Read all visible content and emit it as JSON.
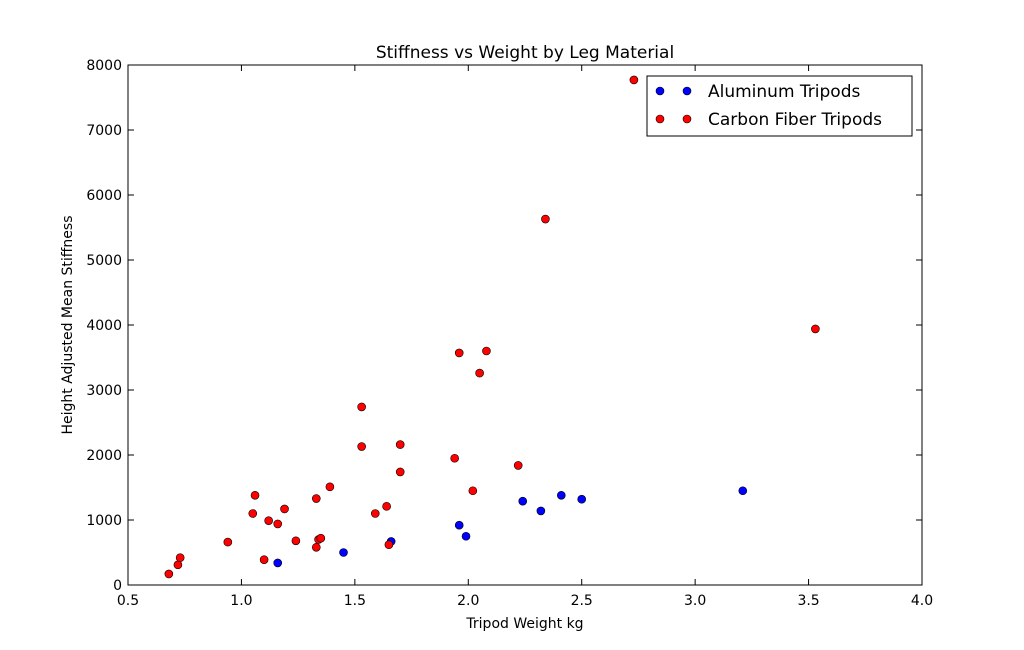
{
  "chart_data": {
    "type": "scatter",
    "title": "Stiffness vs Weight by Leg Material",
    "xlabel": "Tripod Weight kg",
    "ylabel": "Height Adjusted Mean Stiffness",
    "xlim": [
      0.5,
      4.0
    ],
    "ylim": [
      0,
      8000
    ],
    "x_ticks": [
      "0.5",
      "1.0",
      "1.5",
      "2.0",
      "2.5",
      "3.0",
      "3.5",
      "4.0"
    ],
    "y_ticks": [
      "0",
      "1000",
      "2000",
      "3000",
      "4000",
      "5000",
      "6000",
      "7000",
      "8000"
    ],
    "grid": false,
    "legend_position": "top-right",
    "series": [
      {
        "name": "Aluminum Tripods",
        "color": "#0000ff",
        "points": [
          [
            1.16,
            340
          ],
          [
            1.45,
            500
          ],
          [
            1.66,
            670
          ],
          [
            1.96,
            920
          ],
          [
            1.99,
            750
          ],
          [
            2.24,
            1290
          ],
          [
            2.32,
            1140
          ],
          [
            2.41,
            1380
          ],
          [
            2.5,
            1320
          ],
          [
            3.21,
            1450
          ]
        ]
      },
      {
        "name": "Carbon Fiber Tripods",
        "color": "#ff0000",
        "points": [
          [
            0.68,
            170
          ],
          [
            0.72,
            310
          ],
          [
            0.73,
            420
          ],
          [
            0.94,
            660
          ],
          [
            1.05,
            1100
          ],
          [
            1.06,
            1380
          ],
          [
            1.1,
            390
          ],
          [
            1.12,
            990
          ],
          [
            1.16,
            940
          ],
          [
            1.19,
            1170
          ],
          [
            1.24,
            680
          ],
          [
            1.33,
            580
          ],
          [
            1.33,
            1330
          ],
          [
            1.34,
            700
          ],
          [
            1.35,
            720
          ],
          [
            1.39,
            1510
          ],
          [
            1.53,
            2740
          ],
          [
            1.53,
            2130
          ],
          [
            1.59,
            1100
          ],
          [
            1.64,
            1210
          ],
          [
            1.65,
            620
          ],
          [
            1.7,
            1740
          ],
          [
            1.7,
            2160
          ],
          [
            1.94,
            1950
          ],
          [
            1.96,
            3570
          ],
          [
            2.02,
            1450
          ],
          [
            2.05,
            3260
          ],
          [
            2.08,
            3600
          ],
          [
            2.22,
            1840
          ],
          [
            2.34,
            5630
          ],
          [
            2.73,
            7770
          ],
          [
            3.53,
            3940
          ]
        ]
      }
    ]
  }
}
